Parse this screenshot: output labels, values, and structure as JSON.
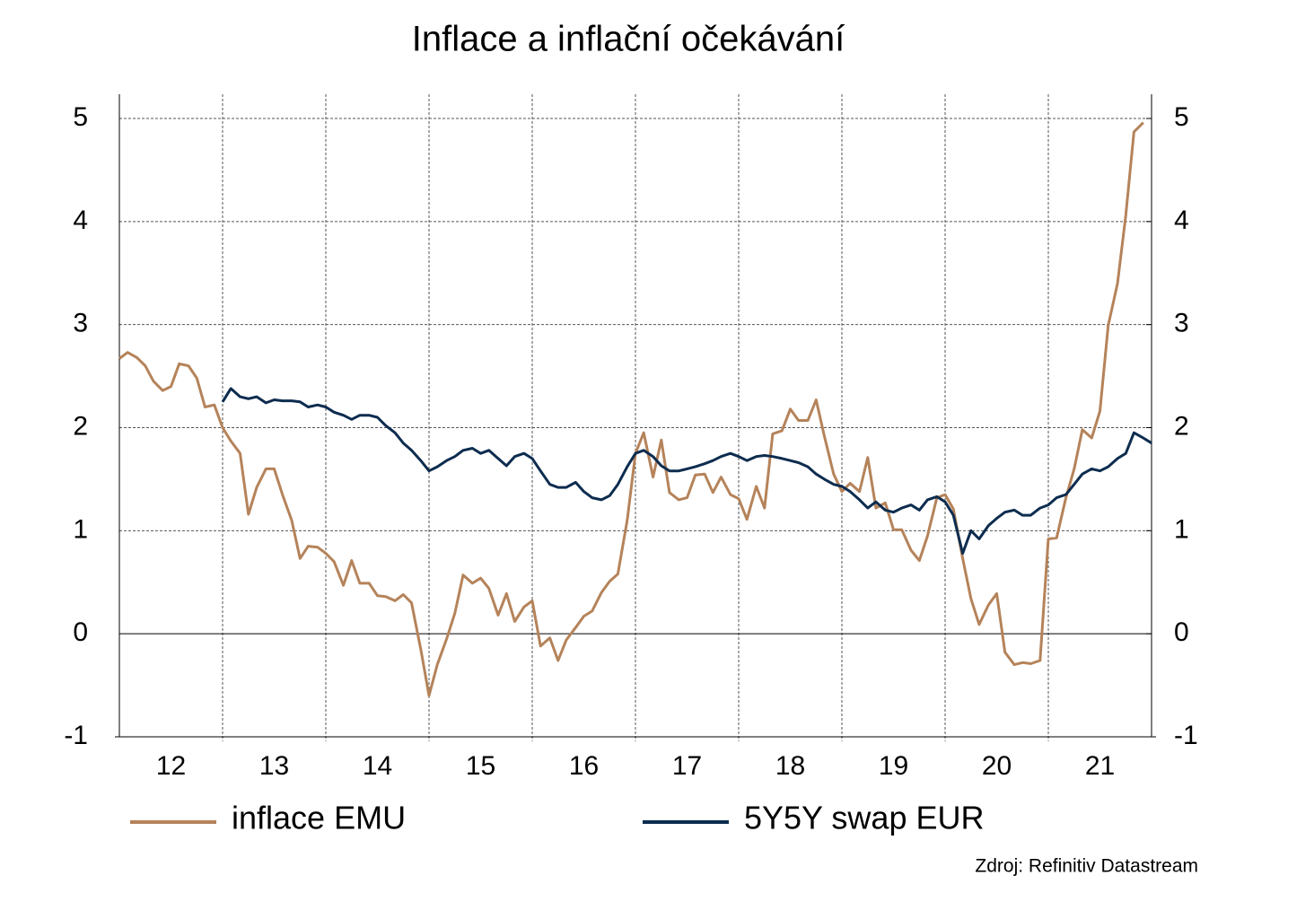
{
  "chart_data": {
    "type": "line",
    "title": "Inflace a inflační očekávání",
    "source": "Zdroj: Refinitiv Datastream",
    "xlim": [
      12,
      22
    ],
    "xticks": [
      {
        "value": 12.5,
        "label": "12"
      },
      {
        "value": 13.5,
        "label": "13"
      },
      {
        "value": 14.5,
        "label": "14"
      },
      {
        "value": 15.5,
        "label": "15"
      },
      {
        "value": 16.5,
        "label": "16"
      },
      {
        "value": 17.5,
        "label": "17"
      },
      {
        "value": 18.5,
        "label": "18"
      },
      {
        "value": 19.5,
        "label": "19"
      },
      {
        "value": 20.5,
        "label": "20"
      },
      {
        "value": 21.5,
        "label": "21"
      }
    ],
    "xgrid": [
      13,
      14,
      15,
      16,
      17,
      18,
      19,
      20,
      21
    ],
    "ylim": [
      -1,
      5
    ],
    "yticks": [
      -1,
      0,
      1,
      2,
      3,
      4,
      5
    ],
    "y2lim": [
      -1,
      5
    ],
    "y2ticks": [
      -1,
      0,
      1,
      2,
      3,
      4,
      5
    ],
    "grid": true,
    "legend": "bottom",
    "series": [
      {
        "name": "inflace EMU",
        "color": "#b5835a",
        "x": [
          12,
          12.08,
          12.17,
          12.25,
          12.33,
          12.42,
          12.5,
          12.58,
          12.67,
          12.75,
          12.83,
          12.92,
          13,
          13.08,
          13.17,
          13.25,
          13.33,
          13.42,
          13.5,
          13.58,
          13.67,
          13.75,
          13.83,
          13.92,
          14,
          14.08,
          14.17,
          14.25,
          14.33,
          14.42,
          14.5,
          14.58,
          14.67,
          14.75,
          14.83,
          14.92,
          15,
          15.08,
          15.17,
          15.25,
          15.33,
          15.42,
          15.5,
          15.58,
          15.67,
          15.75,
          15.83,
          15.92,
          16,
          16.08,
          16.17,
          16.25,
          16.33,
          16.42,
          16.5,
          16.58,
          16.67,
          16.75,
          16.83,
          16.92,
          17,
          17.08,
          17.17,
          17.25,
          17.33,
          17.42,
          17.5,
          17.58,
          17.67,
          17.75,
          17.83,
          17.92,
          18,
          18.08,
          18.17,
          18.25,
          18.33,
          18.42,
          18.5,
          18.58,
          18.67,
          18.75,
          18.83,
          18.92,
          19,
          19.08,
          19.17,
          19.25,
          19.33,
          19.42,
          19.5,
          19.58,
          19.67,
          19.75,
          19.83,
          19.92,
          20,
          20.08,
          20.17,
          20.25,
          20.33,
          20.42,
          20.5,
          20.58,
          20.67,
          20.75,
          20.83,
          20.92,
          21,
          21.08,
          21.17,
          21.25,
          21.33,
          21.42,
          21.5,
          21.58,
          21.67,
          21.75,
          21.83,
          21.92
        ],
        "values": [
          2.67,
          2.73,
          2.68,
          2.6,
          2.45,
          2.36,
          2.4,
          2.62,
          2.6,
          2.48,
          2.2,
          2.22,
          2.0,
          1.87,
          1.75,
          1.16,
          1.42,
          1.6,
          1.6,
          1.35,
          1.1,
          0.73,
          0.85,
          0.84,
          0.78,
          0.7,
          0.47,
          0.71,
          0.49,
          0.49,
          0.37,
          0.36,
          0.32,
          0.38,
          0.3,
          -0.15,
          -0.6,
          -0.3,
          -0.05,
          0.2,
          0.57,
          0.49,
          0.54,
          0.44,
          0.18,
          0.39,
          0.12,
          0.26,
          0.32,
          -0.12,
          -0.04,
          -0.26,
          -0.06,
          0.06,
          0.17,
          0.22,
          0.4,
          0.51,
          0.58,
          1.1,
          1.75,
          1.95,
          1.52,
          1.88,
          1.37,
          1.3,
          1.32,
          1.54,
          1.55,
          1.37,
          1.52,
          1.35,
          1.31,
          1.11,
          1.43,
          1.22,
          1.94,
          1.97,
          2.18,
          2.07,
          2.07,
          2.27,
          1.92,
          1.55,
          1.38,
          1.46,
          1.38,
          1.71,
          1.22,
          1.27,
          1.01,
          1.01,
          0.81,
          0.71,
          0.95,
          1.32,
          1.35,
          1.21,
          0.73,
          0.34,
          0.09,
          0.28,
          0.39,
          -0.18,
          -0.3,
          -0.28,
          -0.29,
          -0.26,
          0.92,
          0.93,
          1.32,
          1.6,
          1.98,
          1.9,
          2.16,
          2.99,
          3.4,
          4.06,
          4.87,
          4.96
        ]
      },
      {
        "name": "5Y5Y swap EUR",
        "color": "#0d2c4f",
        "x": [
          13,
          13.08,
          13.17,
          13.25,
          13.33,
          13.42,
          13.5,
          13.58,
          13.67,
          13.75,
          13.83,
          13.92,
          14,
          14.08,
          14.17,
          14.25,
          14.33,
          14.42,
          14.5,
          14.58,
          14.67,
          14.75,
          14.83,
          14.92,
          15,
          15.08,
          15.17,
          15.25,
          15.33,
          15.42,
          15.5,
          15.58,
          15.67,
          15.75,
          15.83,
          15.92,
          16,
          16.08,
          16.17,
          16.25,
          16.33,
          16.42,
          16.5,
          16.58,
          16.67,
          16.75,
          16.83,
          16.92,
          17,
          17.08,
          17.17,
          17.25,
          17.33,
          17.42,
          17.5,
          17.58,
          17.67,
          17.75,
          17.83,
          17.92,
          18,
          18.08,
          18.17,
          18.25,
          18.33,
          18.42,
          18.5,
          18.58,
          18.67,
          18.75,
          18.83,
          18.92,
          19,
          19.08,
          19.17,
          19.25,
          19.33,
          19.42,
          19.5,
          19.58,
          19.67,
          19.75,
          19.83,
          19.92,
          20,
          20.08,
          20.17,
          20.25,
          20.33,
          20.42,
          20.5,
          20.58,
          20.67,
          20.75,
          20.83,
          20.92,
          21,
          21.08,
          21.17,
          21.25,
          21.33,
          21.42,
          21.5,
          21.58,
          21.67,
          21.75,
          21.83,
          21.92,
          22
        ],
        "values": [
          2.25,
          2.38,
          2.3,
          2.28,
          2.3,
          2.24,
          2.27,
          2.26,
          2.26,
          2.25,
          2.2,
          2.22,
          2.2,
          2.15,
          2.12,
          2.08,
          2.12,
          2.12,
          2.1,
          2.02,
          1.95,
          1.85,
          1.78,
          1.68,
          1.58,
          1.62,
          1.68,
          1.72,
          1.78,
          1.8,
          1.75,
          1.78,
          1.7,
          1.63,
          1.72,
          1.75,
          1.7,
          1.58,
          1.45,
          1.42,
          1.42,
          1.47,
          1.38,
          1.32,
          1.3,
          1.34,
          1.45,
          1.62,
          1.75,
          1.78,
          1.72,
          1.63,
          1.58,
          1.58,
          1.6,
          1.62,
          1.65,
          1.68,
          1.72,
          1.75,
          1.72,
          1.68,
          1.72,
          1.73,
          1.72,
          1.7,
          1.68,
          1.66,
          1.62,
          1.55,
          1.5,
          1.45,
          1.43,
          1.38,
          1.3,
          1.22,
          1.28,
          1.2,
          1.18,
          1.22,
          1.25,
          1.2,
          1.3,
          1.33,
          1.28,
          1.15,
          0.78,
          1.0,
          0.92,
          1.05,
          1.12,
          1.18,
          1.2,
          1.15,
          1.15,
          1.22,
          1.25,
          1.32,
          1.35,
          1.45,
          1.55,
          1.6,
          1.58,
          1.62,
          1.7,
          1.75,
          1.95,
          1.9,
          1.85
        ]
      }
    ]
  }
}
